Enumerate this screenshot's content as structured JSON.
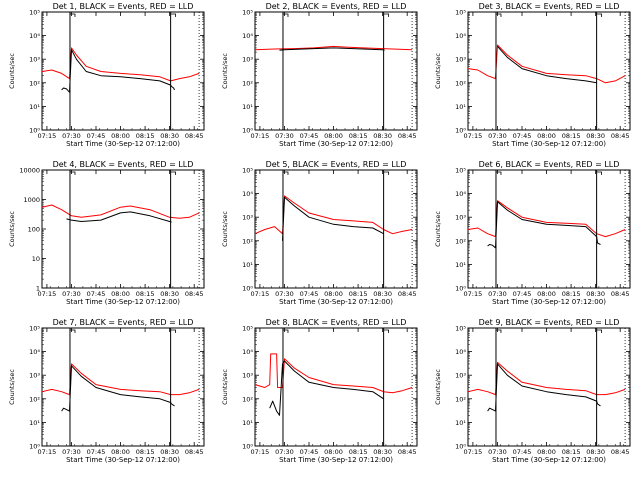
{
  "figure": {
    "xlabel": "Start Time (30-Sep-12 07:12:00)",
    "ylabel": "Counts/sec",
    "x_ticks": [
      "07:15",
      "07:30",
      "07:45",
      "08:00",
      "08:15",
      "08:30",
      "08:45"
    ],
    "colors": {
      "events": "#000000",
      "lld": "#ff0000",
      "axes": "#000000"
    }
  },
  "chart_data": [
    {
      "title": "Det 1, BLACK = Events, RED = LLD",
      "type": "line",
      "yscale": "log",
      "ylim": [
        1,
        100000
      ],
      "y_ticks": [
        {
          "v": 1,
          "t": "10⁰"
        },
        {
          "v": 10,
          "t": "10¹"
        },
        {
          "v": 100,
          "t": "10²"
        },
        {
          "v": 1000,
          "t": "10³"
        },
        {
          "v": 10000,
          "t": "10⁴"
        },
        {
          "v": 100000,
          "t": "10⁵"
        }
      ],
      "xlim": [
        7.2,
        8.85
      ],
      "vlines": [
        {
          "x": 7.485,
          "style": "solid"
        },
        {
          "x": 8.51,
          "style": "solid"
        },
        {
          "x": 8.8,
          "style": "dotted"
        }
      ],
      "series": [
        {
          "key": "lld",
          "x": [
            7.2,
            7.3,
            7.4,
            7.48,
            7.5,
            7.55,
            7.65,
            7.8,
            8.0,
            8.2,
            8.4,
            8.51,
            8.6,
            8.7,
            8.8
          ],
          "y": [
            300,
            350,
            250,
            150,
            3000,
            1500,
            500,
            300,
            250,
            220,
            180,
            120,
            150,
            180,
            250
          ]
        },
        {
          "key": "events",
          "x": [
            7.4,
            7.42,
            7.45,
            7.48,
            7.5,
            7.55,
            7.65,
            7.8,
            8.0,
            8.2,
            8.4,
            8.51,
            8.52,
            8.54,
            8.55
          ],
          "y": [
            50,
            60,
            55,
            40,
            2500,
            1000,
            300,
            200,
            180,
            150,
            120,
            80,
            70,
            60,
            50
          ]
        }
      ]
    },
    {
      "title": "Det 2, BLACK = Events, RED = LLD",
      "type": "line",
      "yscale": "log",
      "ylim": [
        1,
        100000
      ],
      "y_ticks": [
        {
          "v": 1,
          "t": "10⁰"
        },
        {
          "v": 10,
          "t": "10¹"
        },
        {
          "v": 100,
          "t": "10²"
        },
        {
          "v": 1000,
          "t": "10³"
        },
        {
          "v": 10000,
          "t": "10⁴"
        },
        {
          "v": 100000,
          "t": "10⁵"
        }
      ],
      "xlim": [
        7.2,
        8.85
      ],
      "vlines": [
        {
          "x": 7.485,
          "style": "solid"
        },
        {
          "x": 8.51,
          "style": "solid"
        },
        {
          "x": 8.8,
          "style": "dotted"
        }
      ],
      "series": [
        {
          "key": "lld",
          "x": [
            7.2,
            7.4,
            7.6,
            7.8,
            8.0,
            8.1,
            8.3,
            8.5,
            8.7,
            8.8
          ],
          "y": [
            2500,
            2700,
            2800,
            3000,
            3500,
            3300,
            3000,
            2800,
            2600,
            2500
          ]
        },
        {
          "key": "events",
          "x": [
            7.45,
            7.5,
            7.6,
            7.8,
            8.0,
            8.1,
            8.3,
            8.5,
            8.52
          ],
          "y": [
            2400,
            2500,
            2600,
            2800,
            3000,
            2900,
            2700,
            2500,
            2400
          ]
        }
      ]
    },
    {
      "title": "Det 3, BLACK = Events, RED = LLD",
      "type": "line",
      "yscale": "log",
      "ylim": [
        1,
        100000
      ],
      "y_ticks": [
        {
          "v": 1,
          "t": "10⁰"
        },
        {
          "v": 10,
          "t": "10¹"
        },
        {
          "v": 100,
          "t": "10²"
        },
        {
          "v": 1000,
          "t": "10³"
        },
        {
          "v": 10000,
          "t": "10⁴"
        },
        {
          "v": 100000,
          "t": "10⁵"
        }
      ],
      "xlim": [
        7.2,
        8.85
      ],
      "vlines": [
        {
          "x": 7.485,
          "style": "solid"
        },
        {
          "x": 8.51,
          "style": "solid"
        },
        {
          "x": 8.8,
          "style": "dotted"
        }
      ],
      "series": [
        {
          "key": "lld",
          "x": [
            7.2,
            7.3,
            7.4,
            7.48,
            7.5,
            7.6,
            7.75,
            8.0,
            8.2,
            8.4,
            8.51,
            8.6,
            8.7,
            8.8
          ],
          "y": [
            400,
            350,
            200,
            150,
            4000,
            1500,
            500,
            250,
            220,
            200,
            150,
            100,
            120,
            200
          ]
        },
        {
          "key": "events",
          "x": [
            7.5,
            7.6,
            7.75,
            8.0,
            8.2,
            8.4,
            8.51
          ],
          "y": [
            3500,
            1200,
            400,
            200,
            150,
            120,
            100
          ]
        }
      ]
    },
    {
      "title": "Det 4, BLACK = Events, RED = LLD",
      "type": "line",
      "yscale": "log",
      "ylim": [
        1,
        10000
      ],
      "y_ticks": [
        {
          "v": 1,
          "t": "1"
        },
        {
          "v": 10,
          "t": "10"
        },
        {
          "v": 100,
          "t": "100"
        },
        {
          "v": 1000,
          "t": "1000"
        },
        {
          "v": 10000,
          "t": "10000"
        }
      ],
      "xlim": [
        7.2,
        8.85
      ],
      "vlines": [
        {
          "x": 7.485,
          "style": "solid"
        },
        {
          "x": 8.51,
          "style": "solid"
        },
        {
          "x": 8.8,
          "style": "dotted"
        }
      ],
      "series": [
        {
          "key": "lld",
          "x": [
            7.2,
            7.3,
            7.4,
            7.5,
            7.6,
            7.8,
            8.0,
            8.1,
            8.3,
            8.5,
            8.6,
            8.7,
            8.8
          ],
          "y": [
            550,
            650,
            450,
            280,
            250,
            300,
            550,
            600,
            450,
            250,
            230,
            250,
            350
          ]
        },
        {
          "key": "events",
          "x": [
            7.45,
            7.5,
            7.6,
            7.8,
            8.0,
            8.1,
            8.3,
            8.5,
            8.52
          ],
          "y": [
            220,
            200,
            180,
            200,
            350,
            380,
            280,
            180,
            170
          ]
        }
      ]
    },
    {
      "title": "Det 5, BLACK = Events, RED = LLD",
      "type": "line",
      "yscale": "log",
      "ylim": [
        1,
        100000
      ],
      "y_ticks": [
        {
          "v": 1,
          "t": "10⁰"
        },
        {
          "v": 10,
          "t": "10¹"
        },
        {
          "v": 100,
          "t": "10²"
        },
        {
          "v": 1000,
          "t": "10³"
        },
        {
          "v": 10000,
          "t": "10⁴"
        },
        {
          "v": 100000,
          "t": "10⁵"
        }
      ],
      "xlim": [
        7.2,
        8.85
      ],
      "vlines": [
        {
          "x": 7.485,
          "style": "solid"
        },
        {
          "x": 8.51,
          "style": "solid"
        },
        {
          "x": 8.8,
          "style": "dotted"
        }
      ],
      "series": [
        {
          "key": "lld",
          "x": [
            7.2,
            7.3,
            7.4,
            7.48,
            7.5,
            7.6,
            7.75,
            8.0,
            8.2,
            8.4,
            8.51,
            8.6,
            8.7,
            8.8
          ],
          "y": [
            200,
            300,
            400,
            200,
            8000,
            4000,
            1500,
            800,
            700,
            600,
            300,
            200,
            250,
            300
          ]
        },
        {
          "key": "events",
          "x": [
            7.48,
            7.5,
            7.6,
            7.75,
            8.0,
            8.2,
            8.4,
            8.51
          ],
          "y": [
            100,
            7000,
            3000,
            1000,
            500,
            400,
            350,
            200
          ]
        }
      ]
    },
    {
      "title": "Det 6, BLACK = Events, RED = LLD",
      "type": "line",
      "yscale": "log",
      "ylim": [
        1,
        100000
      ],
      "y_ticks": [
        {
          "v": 1,
          "t": "10⁰"
        },
        {
          "v": 10,
          "t": "10¹"
        },
        {
          "v": 100,
          "t": "10²"
        },
        {
          "v": 1000,
          "t": "10³"
        },
        {
          "v": 10000,
          "t": "10⁴"
        },
        {
          "v": 100000,
          "t": "10⁵"
        }
      ],
      "xlim": [
        7.2,
        8.85
      ],
      "vlines": [
        {
          "x": 7.485,
          "style": "solid"
        },
        {
          "x": 8.51,
          "style": "solid"
        },
        {
          "x": 8.8,
          "style": "dotted"
        }
      ],
      "series": [
        {
          "key": "lld",
          "x": [
            7.2,
            7.3,
            7.4,
            7.48,
            7.5,
            7.6,
            7.75,
            8.0,
            8.2,
            8.4,
            8.51,
            8.6,
            8.7,
            8.8
          ],
          "y": [
            300,
            350,
            200,
            150,
            5000,
            2500,
            1000,
            600,
            550,
            500,
            200,
            150,
            200,
            300
          ]
        },
        {
          "key": "events",
          "x": [
            7.4,
            7.42,
            7.45,
            7.48,
            7.5,
            7.6,
            7.75,
            8.0,
            8.2,
            8.4,
            8.51,
            8.52,
            8.55
          ],
          "y": [
            60,
            70,
            65,
            50,
            4500,
            2000,
            800,
            500,
            450,
            400,
            150,
            80,
            70
          ]
        }
      ]
    },
    {
      "title": "Det 7, BLACK = Events, RED = LLD",
      "type": "line",
      "yscale": "log",
      "ylim": [
        1,
        100000
      ],
      "y_ticks": [
        {
          "v": 1,
          "t": "10⁰"
        },
        {
          "v": 10,
          "t": "10¹"
        },
        {
          "v": 100,
          "t": "10²"
        },
        {
          "v": 1000,
          "t": "10³"
        },
        {
          "v": 10000,
          "t": "10⁴"
        },
        {
          "v": 100000,
          "t": "10⁵"
        }
      ],
      "xlim": [
        7.2,
        8.85
      ],
      "vlines": [
        {
          "x": 7.485,
          "style": "solid"
        },
        {
          "x": 8.51,
          "style": "solid"
        },
        {
          "x": 8.8,
          "style": "dotted"
        }
      ],
      "series": [
        {
          "key": "lld",
          "x": [
            7.2,
            7.3,
            7.4,
            7.48,
            7.5,
            7.6,
            7.75,
            8.0,
            8.2,
            8.4,
            8.51,
            8.6,
            8.7,
            8.8
          ],
          "y": [
            200,
            250,
            200,
            150,
            3000,
            1200,
            400,
            250,
            220,
            200,
            150,
            150,
            180,
            250
          ]
        },
        {
          "key": "events",
          "x": [
            7.4,
            7.42,
            7.45,
            7.48,
            7.5,
            7.6,
            7.75,
            8.0,
            8.2,
            8.4,
            8.51,
            8.52,
            8.55
          ],
          "y": [
            30,
            40,
            35,
            30,
            2500,
            900,
            300,
            150,
            120,
            100,
            70,
            60,
            50
          ]
        }
      ]
    },
    {
      "title": "Det 8, BLACK = Events, RED = LLD",
      "type": "line",
      "yscale": "log",
      "ylim": [
        1,
        100000
      ],
      "y_ticks": [
        {
          "v": 1,
          "t": "10⁰"
        },
        {
          "v": 10,
          "t": "10¹"
        },
        {
          "v": 100,
          "t": "10²"
        },
        {
          "v": 1000,
          "t": "10³"
        },
        {
          "v": 10000,
          "t": "10⁴"
        },
        {
          "v": 100000,
          "t": "10⁵"
        }
      ],
      "xlim": [
        7.2,
        8.85
      ],
      "vlines": [
        {
          "x": 7.485,
          "style": "solid"
        },
        {
          "x": 8.51,
          "style": "solid"
        },
        {
          "x": 8.8,
          "style": "dotted"
        }
      ],
      "series": [
        {
          "key": "lld",
          "x": [
            7.2,
            7.3,
            7.35,
            7.36,
            7.42,
            7.43,
            7.48,
            7.5,
            7.6,
            7.75,
            8.0,
            8.2,
            8.4,
            8.51,
            8.6,
            8.7,
            8.8
          ],
          "y": [
            400,
            300,
            400,
            8000,
            8000,
            300,
            300,
            5000,
            2000,
            800,
            400,
            350,
            300,
            200,
            180,
            220,
            300
          ]
        },
        {
          "key": "events",
          "x": [
            7.35,
            7.38,
            7.42,
            7.45,
            7.48,
            7.5,
            7.6,
            7.75,
            8.0,
            8.2,
            8.4,
            8.51
          ],
          "y": [
            40,
            80,
            30,
            20,
            3000,
            4000,
            1500,
            500,
            300,
            250,
            200,
            100
          ]
        }
      ]
    },
    {
      "title": "Det 9, BLACK = Events, RED = LLD",
      "type": "line",
      "yscale": "log",
      "ylim": [
        1,
        100000
      ],
      "y_ticks": [
        {
          "v": 1,
          "t": "10⁰"
        },
        {
          "v": 10,
          "t": "10¹"
        },
        {
          "v": 100,
          "t": "10²"
        },
        {
          "v": 1000,
          "t": "10³"
        },
        {
          "v": 10000,
          "t": "10⁴"
        },
        {
          "v": 100000,
          "t": "10⁵"
        }
      ],
      "xlim": [
        7.2,
        8.85
      ],
      "vlines": [
        {
          "x": 7.485,
          "style": "solid"
        },
        {
          "x": 8.51,
          "style": "solid"
        },
        {
          "x": 8.8,
          "style": "dotted"
        }
      ],
      "series": [
        {
          "key": "lld",
          "x": [
            7.2,
            7.3,
            7.4,
            7.48,
            7.5,
            7.6,
            7.75,
            8.0,
            8.2,
            8.4,
            8.51,
            8.6,
            8.7,
            8.8
          ],
          "y": [
            200,
            250,
            200,
            150,
            3500,
            1500,
            500,
            300,
            250,
            220,
            150,
            150,
            180,
            250
          ]
        },
        {
          "key": "events",
          "x": [
            7.4,
            7.42,
            7.45,
            7.48,
            7.5,
            7.6,
            7.75,
            8.0,
            8.2,
            8.4,
            8.51,
            8.52,
            8.55
          ],
          "y": [
            30,
            40,
            35,
            30,
            3000,
            1000,
            350,
            200,
            150,
            120,
            80,
            60,
            50
          ]
        }
      ]
    }
  ]
}
